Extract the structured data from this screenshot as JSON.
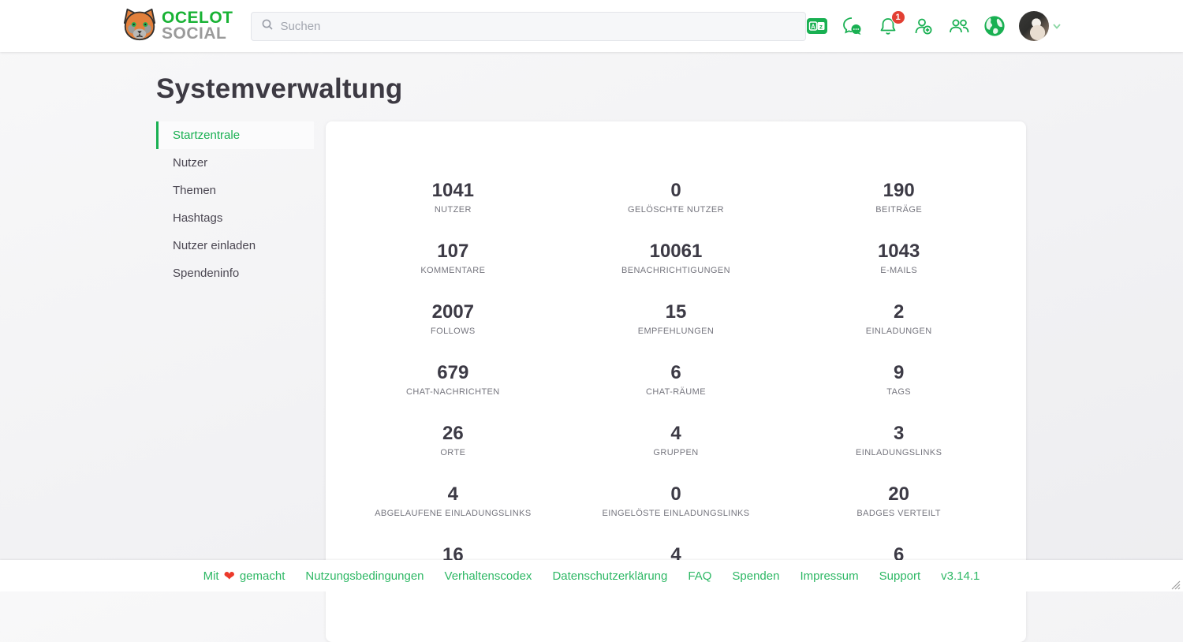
{
  "colors": {
    "brand_green": "#19b052",
    "badge_red": "#e23f33",
    "heart_red": "#ec392b"
  },
  "header": {
    "logo": {
      "line1": "OCELOT",
      "line2": "SOCIAL"
    },
    "search": {
      "placeholder": "Suchen"
    },
    "notification_count": "1",
    "icons": [
      "translate-icon",
      "chat-icon",
      "bell-icon",
      "add-user-icon",
      "groups-icon",
      "globe-icon",
      "avatar",
      "chevron-down-icon"
    ]
  },
  "page": {
    "title": "Systemverwaltung"
  },
  "sidebar": {
    "items": [
      {
        "label": "Startzentrale",
        "active": true
      },
      {
        "label": "Nutzer",
        "active": false
      },
      {
        "label": "Themen",
        "active": false
      },
      {
        "label": "Hashtags",
        "active": false
      },
      {
        "label": "Nutzer einladen",
        "active": false
      },
      {
        "label": "Spendeninfo",
        "active": false
      }
    ]
  },
  "stats": [
    {
      "value": "1041",
      "label": "NUTZER"
    },
    {
      "value": "0",
      "label": "GELÖSCHTE NUTZER"
    },
    {
      "value": "190",
      "label": "BEITRÄGE"
    },
    {
      "value": "107",
      "label": "KOMMENTARE"
    },
    {
      "value": "10061",
      "label": "BENACHRICHTIGUNGEN"
    },
    {
      "value": "1043",
      "label": "E-MAILS"
    },
    {
      "value": "2007",
      "label": "FOLLOWS"
    },
    {
      "value": "15",
      "label": "EMPFEHLUNGEN"
    },
    {
      "value": "2",
      "label": "EINLADUNGEN"
    },
    {
      "value": "679",
      "label": "CHAT-NACHRICHTEN"
    },
    {
      "value": "6",
      "label": "CHAT-RÄUME"
    },
    {
      "value": "9",
      "label": "TAGS"
    },
    {
      "value": "26",
      "label": "ORTE"
    },
    {
      "value": "4",
      "label": "GRUPPEN"
    },
    {
      "value": "3",
      "label": "EINLADUNGSLINKS"
    },
    {
      "value": "4",
      "label": "ABGELAUFENE EINLADUNGSLINKS"
    },
    {
      "value": "0",
      "label": "EINGELÖSTE EINLADUNGSLINKS"
    },
    {
      "value": "20",
      "label": "BADGES VERTEILT"
    },
    {
      "value": "16",
      "label": ""
    },
    {
      "value": "4",
      "label": ""
    },
    {
      "value": "6",
      "label": ""
    }
  ],
  "footer": {
    "made_with_prefix": "Mit",
    "made_with_suffix": "gemacht",
    "links": [
      "Nutzungsbedingungen",
      "Verhaltenscodex",
      "Datenschutzerklärung",
      "FAQ",
      "Spenden",
      "Impressum",
      "Support"
    ],
    "version": "v3.14.1"
  }
}
